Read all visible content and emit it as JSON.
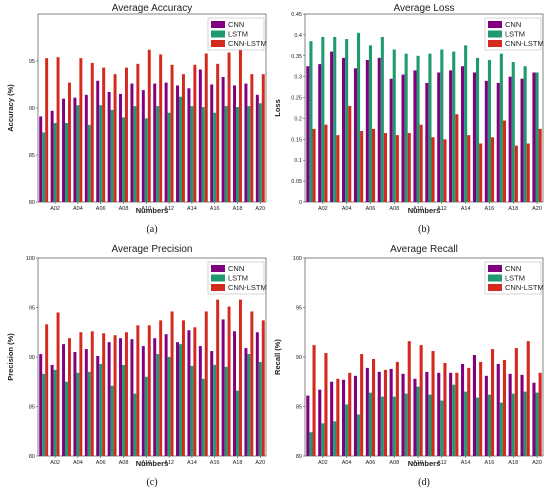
{
  "legend_colors": {
    "CNN": "#800080",
    "LSTM": "#1f9a6e",
    "CNN-LSTM": "#d42a1e"
  },
  "chart_data": [
    {
      "type": "bar",
      "title": "Average Accuracy",
      "xlabel": "Numbers",
      "ylabel": "Accuracy (%)",
      "ylim": [
        80,
        100
      ],
      "yticks": [
        80,
        85,
        90,
        95
      ],
      "caption": "(a)",
      "legend_position": "top-right",
      "categories": [
        "A01",
        "A02",
        "A03",
        "A04",
        "A05",
        "A06",
        "A07",
        "A08",
        "A09",
        "A10",
        "A11",
        "A12",
        "A13",
        "A14",
        "A15",
        "A16",
        "A17",
        "A18",
        "A19",
        "A20"
      ],
      "xticklabels": [
        "A02",
        "A04",
        "A06",
        "A08",
        "A10",
        "A12",
        "A14",
        "A16",
        "A18",
        "A20"
      ],
      "series": [
        {
          "name": "CNN",
          "values": [
            89.1,
            89.7,
            91.0,
            91.1,
            91.4,
            92.9,
            91.7,
            91.5,
            92.6,
            91.9,
            92.6,
            92.7,
            92.4,
            92.1,
            94.1,
            92.5,
            93.3,
            92.4,
            92.6,
            91.4
          ]
        },
        {
          "name": "LSTM",
          "values": [
            87.4,
            88.4,
            88.4,
            90.3,
            88.2,
            90.3,
            89.8,
            89.0,
            90.2,
            88.9,
            90.2,
            89.5,
            91.2,
            90.2,
            90.1,
            89.5,
            90.2,
            90.1,
            90.2,
            90.5
          ]
        },
        {
          "name": "CNN-LSTM",
          "values": [
            95.3,
            95.4,
            92.7,
            95.3,
            94.8,
            94.3,
            93.6,
            94.3,
            94.7,
            96.2,
            95.7,
            94.6,
            93.6,
            94.6,
            95.8,
            94.7,
            95.9,
            96.7,
            93.6,
            93.6
          ]
        }
      ]
    },
    {
      "type": "bar",
      "title": "Average Loss",
      "xlabel": "Numbers",
      "ylabel": "Loss",
      "ylim": [
        0,
        0.45
      ],
      "yticks": [
        0,
        0.05,
        0.1,
        0.15,
        0.2,
        0.25,
        0.3,
        0.35,
        0.4,
        0.45
      ],
      "ytick_labels": [
        "0",
        "0.05",
        "0.1",
        "0.15",
        "0.2",
        "0.25",
        "0.3",
        "0.35",
        "0.4",
        "0.45"
      ],
      "caption": "(b)",
      "legend_position": "top-right",
      "categories": [
        "A01",
        "A02",
        "A03",
        "A04",
        "A05",
        "A06",
        "A07",
        "A08",
        "A09",
        "A10",
        "A11",
        "A12",
        "A13",
        "A14",
        "A15",
        "A16",
        "A17",
        "A18",
        "A19",
        "A20"
      ],
      "xticklabels": [
        "A02",
        "A04",
        "A06",
        "A08",
        "A10",
        "A12",
        "A14",
        "A16",
        "A18",
        "A20"
      ],
      "series": [
        {
          "name": "CNN",
          "values": [
            0.325,
            0.33,
            0.36,
            0.345,
            0.32,
            0.34,
            0.345,
            0.295,
            0.305,
            0.315,
            0.285,
            0.31,
            0.315,
            0.325,
            0.31,
            0.29,
            0.285,
            0.3,
            0.295,
            0.31
          ]
        },
        {
          "name": "LSTM",
          "values": [
            0.385,
            0.395,
            0.395,
            0.39,
            0.405,
            0.375,
            0.395,
            0.365,
            0.355,
            0.35,
            0.355,
            0.365,
            0.36,
            0.375,
            0.345,
            0.34,
            0.355,
            0.335,
            0.325,
            0.31
          ]
        },
        {
          "name": "CNN-LSTM",
          "values": [
            0.175,
            0.185,
            0.16,
            0.23,
            0.17,
            0.175,
            0.165,
            0.16,
            0.165,
            0.185,
            0.155,
            0.15,
            0.21,
            0.16,
            0.14,
            0.155,
            0.195,
            0.135,
            0.14,
            0.175
          ]
        }
      ]
    },
    {
      "type": "bar",
      "title": "Average Precision",
      "xlabel": "Numbers",
      "ylabel": "Precision (%)",
      "ylim": [
        80,
        100
      ],
      "yticks": [
        80,
        85,
        90,
        95,
        100
      ],
      "caption": "(c)",
      "legend_position": "top-right",
      "categories": [
        "A01",
        "A02",
        "A03",
        "A04",
        "A05",
        "A06",
        "A07",
        "A08",
        "A09",
        "A10",
        "A11",
        "A12",
        "A13",
        "A14",
        "A15",
        "A16",
        "A17",
        "A18",
        "A19",
        "A20"
      ],
      "xticklabels": [
        "A02",
        "A04",
        "A06",
        "A08",
        "A10",
        "A12",
        "A14",
        "A16",
        "A18",
        "A20"
      ],
      "series": [
        {
          "name": "CNN",
          "values": [
            90.3,
            89.2,
            91.3,
            90.5,
            90.8,
            90.1,
            91.5,
            91.9,
            91.8,
            91.1,
            91.9,
            92.3,
            91.5,
            92.7,
            91.1,
            90.6,
            93.8,
            92.6,
            90.9,
            92.5
          ]
        },
        {
          "name": "LSTM",
          "values": [
            88.3,
            88.7,
            87.5,
            88.4,
            88.5,
            89.3,
            87.1,
            89.2,
            86.3,
            88.0,
            90.3,
            90.0,
            91.3,
            89.1,
            87.8,
            89.2,
            89.0,
            86.6,
            90.3,
            89.5
          ]
        },
        {
          "name": "CNN-LSTM",
          "values": [
            93.3,
            94.5,
            91.9,
            92.5,
            92.6,
            92.4,
            92.2,
            92.5,
            93.2,
            93.2,
            93.7,
            94.6,
            93.7,
            93.0,
            94.6,
            95.8,
            95.1,
            95.8,
            94.6,
            93.7
          ]
        }
      ]
    },
    {
      "type": "bar",
      "title": "Average Recall",
      "xlabel": "Numbers",
      "ylabel": "Recall (%)",
      "ylim": [
        80,
        100
      ],
      "yticks": [
        80,
        85,
        90,
        95,
        100
      ],
      "caption": "(d)",
      "legend_position": "top-right",
      "categories": [
        "A01",
        "A02",
        "A03",
        "A04",
        "A05",
        "A06",
        "A07",
        "A08",
        "A09",
        "A10",
        "A11",
        "A12",
        "A13",
        "A14",
        "A15",
        "A16",
        "A17",
        "A18",
        "A19",
        "A20"
      ],
      "xticklabels": [
        "A02",
        "A04",
        "A06",
        "A08",
        "A10",
        "A12",
        "A14",
        "A16",
        "A18",
        "A20"
      ],
      "series": [
        {
          "name": "CNN",
          "values": [
            86.1,
            86.7,
            87.5,
            87.7,
            88.1,
            88.9,
            88.5,
            88.8,
            88.3,
            87.8,
            88.5,
            88.4,
            88.4,
            89.3,
            90.2,
            88.1,
            89.3,
            88.3,
            88.2,
            87.4
          ]
        },
        {
          "name": "LSTM",
          "values": [
            82.4,
            83.3,
            83.5,
            85.2,
            84.2,
            86.4,
            86.0,
            86.0,
            86.3,
            87.0,
            86.2,
            85.6,
            87.2,
            86.5,
            85.9,
            86.2,
            85.4,
            86.3,
            86.5,
            86.4
          ]
        },
        {
          "name": "CNN-LSTM",
          "values": [
            91.2,
            90.4,
            87.8,
            88.4,
            90.3,
            89.8,
            88.7,
            89.5,
            91.6,
            91.2,
            90.6,
            89.4,
            88.4,
            88.9,
            89.5,
            90.8,
            89.7,
            90.9,
            91.6,
            88.4
          ]
        }
      ]
    }
  ]
}
